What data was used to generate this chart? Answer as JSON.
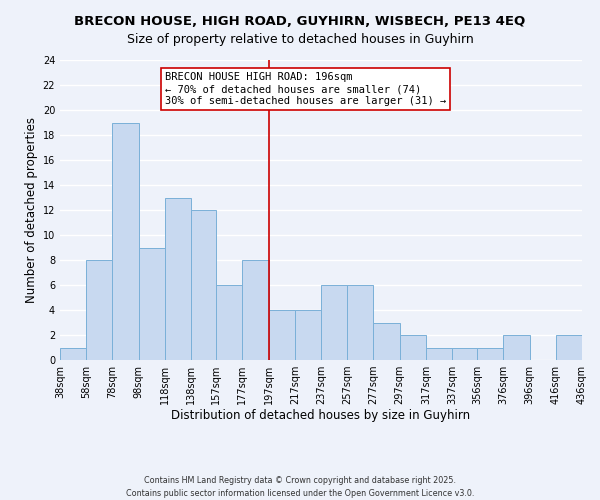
{
  "title": "BRECON HOUSE, HIGH ROAD, GUYHIRN, WISBECH, PE13 4EQ",
  "subtitle": "Size of property relative to detached houses in Guyhirn",
  "xlabel": "Distribution of detached houses by size in Guyhirn",
  "ylabel": "Number of detached properties",
  "bin_edges": [
    38,
    58,
    78,
    98,
    118,
    138,
    157,
    177,
    197,
    217,
    237,
    257,
    277,
    297,
    317,
    337,
    356,
    376,
    396,
    416,
    436
  ],
  "bin_labels": [
    "38sqm",
    "58sqm",
    "78sqm",
    "98sqm",
    "118sqm",
    "138sqm",
    "157sqm",
    "177sqm",
    "197sqm",
    "217sqm",
    "237sqm",
    "257sqm",
    "277sqm",
    "297sqm",
    "317sqm",
    "337sqm",
    "356sqm",
    "376sqm",
    "396sqm",
    "416sqm",
    "436sqm"
  ],
  "counts": [
    1,
    8,
    19,
    9,
    13,
    12,
    6,
    8,
    4,
    4,
    6,
    6,
    3,
    2,
    1,
    1,
    1,
    2,
    0,
    2
  ],
  "bar_color": "#c8d9f0",
  "bar_edge_color": "#7ab0d8",
  "vline_x": 197,
  "vline_color": "#cc0000",
  "annotation_title": "BRECON HOUSE HIGH ROAD: 196sqm",
  "annotation_line1": "← 70% of detached houses are smaller (74)",
  "annotation_line2": "30% of semi-detached houses are larger (31) →",
  "ylim": [
    0,
    24
  ],
  "yticks": [
    0,
    2,
    4,
    6,
    8,
    10,
    12,
    14,
    16,
    18,
    20,
    22,
    24
  ],
  "footer1": "Contains HM Land Registry data © Crown copyright and database right 2025.",
  "footer2": "Contains public sector information licensed under the Open Government Licence v3.0.",
  "background_color": "#eef2fa",
  "grid_color": "#ffffff",
  "title_fontsize": 9.5,
  "subtitle_fontsize": 9,
  "axis_label_fontsize": 8.5,
  "tick_fontsize": 7,
  "annotation_fontsize": 7.5
}
